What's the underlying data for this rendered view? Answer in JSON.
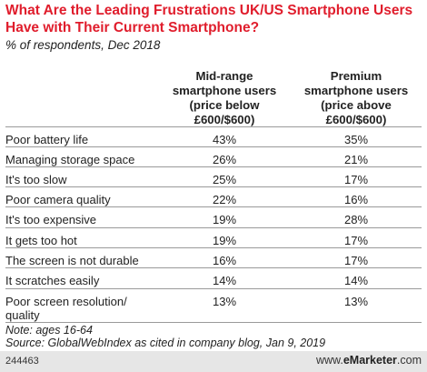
{
  "chart_data": {
    "type": "table",
    "title": "What Are the Leading Frustrations UK/US Smartphone Users Have with Their Current Smartphone?",
    "subtitle": "% of respondents, Dec 2018",
    "columns": [
      {
        "lines": [
          "Mid-range",
          "smartphone users",
          "(price below",
          "£600/$600)"
        ]
      },
      {
        "lines": [
          "Premium",
          "smartphone users",
          "(price above",
          "£600/$600)"
        ]
      }
    ],
    "rows": [
      {
        "label": [
          "Poor battery life"
        ],
        "values": [
          "43%",
          "35%"
        ]
      },
      {
        "label": [
          "Managing storage space"
        ],
        "values": [
          "26%",
          "21%"
        ]
      },
      {
        "label": [
          "It's too slow"
        ],
        "values": [
          "25%",
          "17%"
        ]
      },
      {
        "label": [
          "Poor camera quality"
        ],
        "values": [
          "22%",
          "16%"
        ]
      },
      {
        "label": [
          "It's too expensive"
        ],
        "values": [
          "19%",
          "28%"
        ]
      },
      {
        "label": [
          "It gets too hot"
        ],
        "values": [
          "19%",
          "17%"
        ]
      },
      {
        "label": [
          "The screen is not durable"
        ],
        "values": [
          "16%",
          "17%"
        ]
      },
      {
        "label": [
          "It scratches easily"
        ],
        "values": [
          "14%",
          "14%"
        ]
      },
      {
        "label": [
          "Poor screen resolution/",
          "quality"
        ],
        "values": [
          "13%",
          "13%"
        ]
      }
    ],
    "note": "Note: ages 16-64",
    "source": "Source: GlobalWebIndex as cited in company blog, Jan 9, 2019"
  },
  "footer": {
    "chart_id": "244463",
    "site_prefix": "www.",
    "site_brand": "eMarketer",
    "site_suffix": ".com"
  },
  "colors": {
    "title": "#e01d2c",
    "rule": "#9a9a9a",
    "footer_bg": "#e6e6e6"
  }
}
